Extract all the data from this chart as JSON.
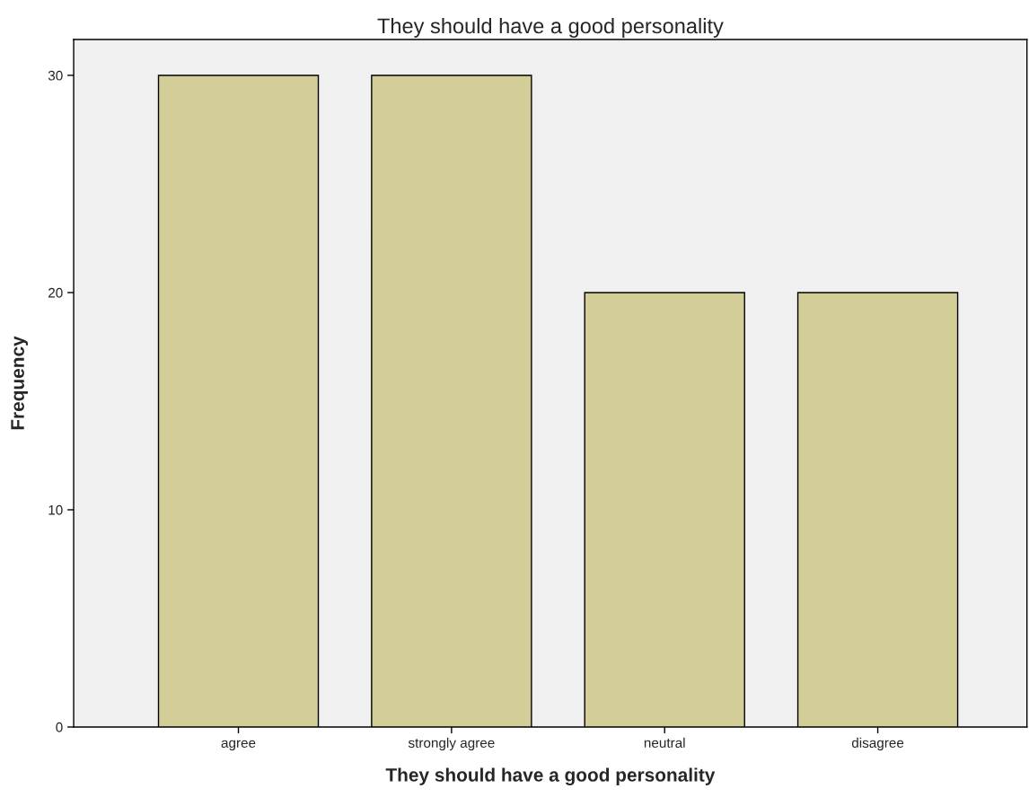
{
  "chart_data": {
    "type": "bar",
    "title": "They should have a good personality",
    "xlabel": "They should have a good personality",
    "ylabel": "Frequency",
    "categories": [
      "agree",
      "strongly agree",
      "neutral",
      "disagree"
    ],
    "values": [
      30,
      30,
      20,
      20
    ],
    "color": "#d3ce97",
    "ylim": [
      0,
      31.65
    ],
    "yticks": [
      0,
      10,
      20,
      30
    ],
    "grid": false,
    "legend": false
  }
}
